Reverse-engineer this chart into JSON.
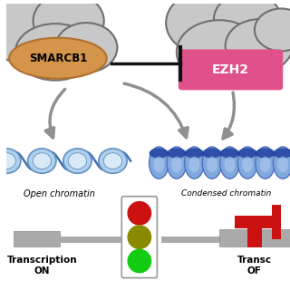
{
  "smarcb1_label": "SMARCB1",
  "ezh2_label": "EZH2",
  "transcription_on_line1": "Transcription",
  "transcription_on_line2": "ON",
  "transcription_off_line1": "Transc",
  "transcription_off_line2": "OF",
  "open_chromatin_label": "Open chromatin",
  "condensed_chromatin_label": "Condensed chromatin",
  "smarcb1_color": "#d4954a",
  "smarcb1_outline": "#b07030",
  "ezh2_color": "#e0508a",
  "protein_gray_light": "#c8c8c8",
  "protein_gray_dark": "#909090",
  "protein_outline": "#707070",
  "arrow_gray": "#909090",
  "arrow_gray_dark": "#707070",
  "open_chrom_blue": "#b0d0ee",
  "open_chrom_edge": "#6090c0",
  "open_chrom_line": "#4070b0",
  "condensed_blue": "#80aadd",
  "condensed_dark": "#2040a0",
  "condensed_edge": "#5070c0",
  "traffic_red": "#cc1111",
  "traffic_olive": "#8a8a00",
  "traffic_green": "#11cc11",
  "traffic_box_edge": "#999999",
  "inhibit_color": "#111111",
  "gene_gray": "#aaaaaa",
  "gene_dark": "#888888",
  "red_block": "#cc1111",
  "white": "#ffffff"
}
